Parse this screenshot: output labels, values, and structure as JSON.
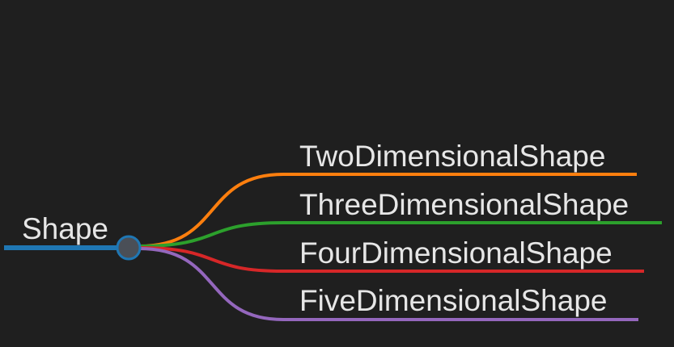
{
  "mindmap": {
    "root": {
      "label": "Shape",
      "color": "#1f77b4",
      "node_fill": "#4a4f57"
    },
    "branches": [
      {
        "label": "TwoDimensionalShape",
        "color": "#ff7f0e"
      },
      {
        "label": "ThreeDimensionalShape",
        "color": "#2ca02c"
      },
      {
        "label": "FourDimensionalShape",
        "color": "#d62728"
      },
      {
        "label": "FiveDimensionalShape",
        "color": "#9467bd"
      }
    ]
  }
}
